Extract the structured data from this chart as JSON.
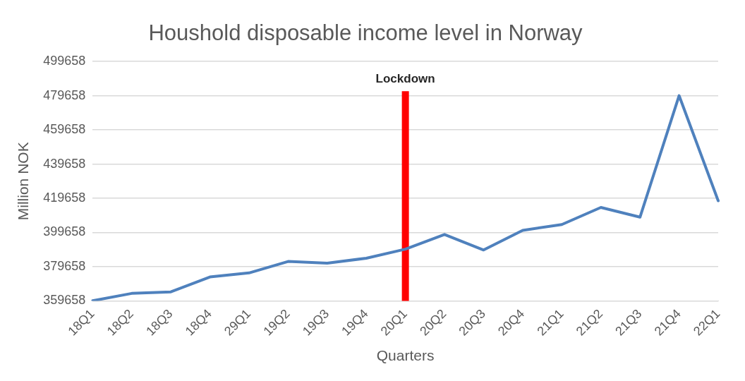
{
  "chart_data": {
    "type": "line",
    "title": "Houshold disposable income level in Norway",
    "xlabel": "Quarters",
    "ylabel": "Million NOK",
    "categories": [
      "18Q1",
      "18Q2",
      "18Q3",
      "18Q4",
      "29Q1",
      "19Q2",
      "19Q3",
      "19Q4",
      "20Q1",
      "20Q2",
      "20Q3",
      "20Q4",
      "21Q1",
      "21Q2",
      "21Q3",
      "21Q4",
      "22Q1"
    ],
    "series": [
      {
        "color": "#4f81bd",
        "values": [
          359700,
          364000,
          364900,
          373600,
          376000,
          382700,
          381700,
          384600,
          389900,
          398500,
          389400,
          400900,
          404300,
          414300,
          408600,
          479700,
          418200
        ]
      }
    ],
    "ylim": [
      359658,
      499658
    ],
    "yticks": [
      359658,
      379658,
      399658,
      419658,
      439658,
      459658,
      479658,
      499658
    ],
    "grid": "y",
    "legend": false,
    "marker": "none",
    "line_style": "solid",
    "ref_lines": [
      {
        "axis": "x",
        "value": "20Q1",
        "label": "Lockdown",
        "color": "#ff0000"
      }
    ]
  }
}
